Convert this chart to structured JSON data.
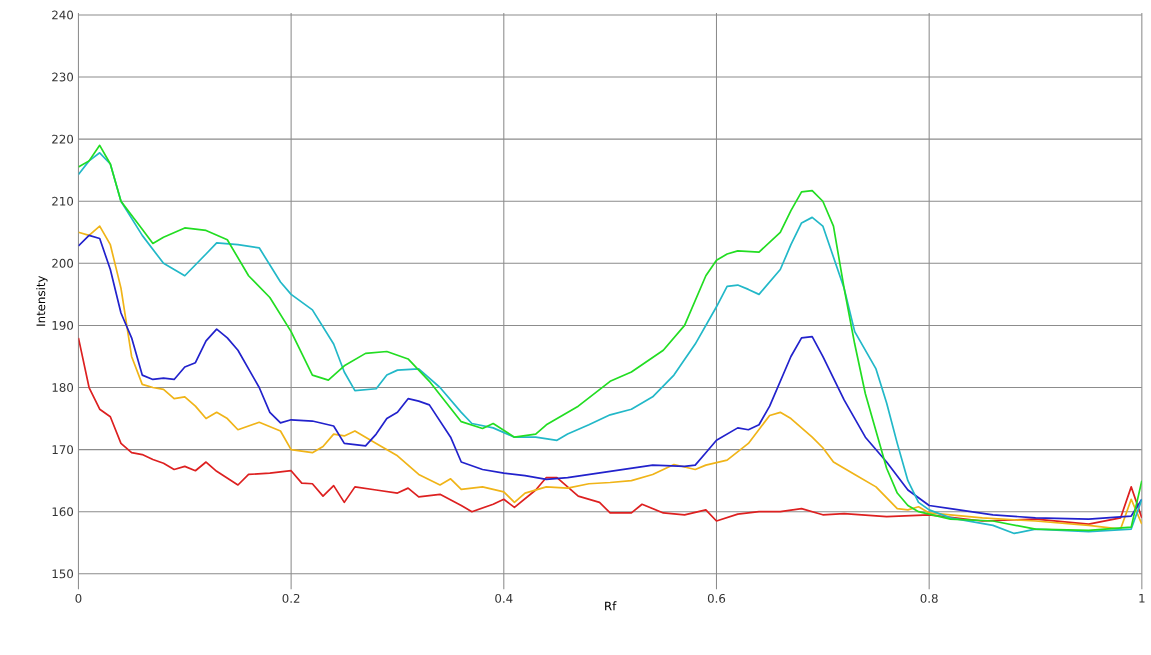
{
  "chart_data": {
    "type": "line",
    "xlabel": "Rf",
    "ylabel": "Intensity",
    "xlim": [
      0,
      1
    ],
    "ylim": [
      147.5,
      240.3
    ],
    "xticks": [
      0,
      0.2,
      0.4,
      0.6,
      0.8,
      1
    ],
    "yticks": [
      150,
      160,
      170,
      180,
      190,
      200,
      210,
      220,
      230,
      240
    ],
    "grid": true,
    "marker": "none",
    "line_style": "solid",
    "series": [
      {
        "color": "#dd2020",
        "x": [
          0,
          0.01,
          0.02,
          0.03,
          0.04,
          0.05,
          0.06,
          0.07,
          0.08,
          0.09,
          0.1,
          0.11,
          0.12,
          0.13,
          0.15,
          0.16,
          0.18,
          0.2,
          0.21,
          0.22,
          0.23,
          0.24,
          0.25,
          0.26,
          0.28,
          0.3,
          0.31,
          0.32,
          0.34,
          0.36,
          0.37,
          0.39,
          0.4,
          0.41,
          0.43,
          0.44,
          0.45,
          0.47,
          0.49,
          0.5,
          0.52,
          0.53,
          0.55,
          0.57,
          0.59,
          0.6,
          0.62,
          0.64,
          0.66,
          0.68,
          0.7,
          0.72,
          0.76,
          0.8,
          0.85,
          0.9,
          0.95,
          0.98,
          0.99,
          1.0
        ],
        "values": [
          188,
          180,
          176.5,
          175.3,
          171,
          169.5,
          169.2,
          168.4,
          167.8,
          166.8,
          167.3,
          166.6,
          168,
          166.5,
          164.3,
          166,
          166.2,
          166.6,
          164.6,
          164.5,
          162.5,
          164.2,
          161.5,
          164,
          163.5,
          163,
          163.8,
          162.4,
          162.8,
          161,
          160,
          161.2,
          162,
          160.7,
          163.5,
          165.5,
          165.5,
          162.5,
          161.5,
          159.8,
          159.8,
          161.2,
          159.8,
          159.5,
          160.3,
          158.5,
          159.6,
          160,
          160,
          160.5,
          159.5,
          159.7,
          159.2,
          159.5,
          158.5,
          158.8,
          158,
          159,
          164,
          159
        ]
      },
      {
        "color": "#f0b418",
        "x": [
          0,
          0.01,
          0.02,
          0.03,
          0.04,
          0.05,
          0.06,
          0.07,
          0.08,
          0.09,
          0.1,
          0.11,
          0.12,
          0.13,
          0.14,
          0.15,
          0.17,
          0.19,
          0.2,
          0.22,
          0.23,
          0.24,
          0.25,
          0.26,
          0.28,
          0.3,
          0.32,
          0.34,
          0.35,
          0.36,
          0.38,
          0.4,
          0.41,
          0.42,
          0.44,
          0.46,
          0.48,
          0.5,
          0.52,
          0.54,
          0.56,
          0.58,
          0.59,
          0.61,
          0.63,
          0.65,
          0.66,
          0.67,
          0.69,
          0.7,
          0.71,
          0.73,
          0.75,
          0.77,
          0.78,
          0.79,
          0.8,
          0.85,
          0.9,
          0.95,
          0.98,
          0.99,
          1.0
        ],
        "values": [
          205,
          204.5,
          206,
          203,
          196,
          185,
          180.5,
          180,
          179.7,
          178.2,
          178.5,
          177,
          175,
          176,
          175,
          173.2,
          174.4,
          173,
          170,
          169.5,
          170.5,
          172.5,
          172.2,
          173,
          171,
          169,
          166,
          164.3,
          165.3,
          163.6,
          164,
          163.2,
          161.5,
          163,
          164,
          163.8,
          164.5,
          164.7,
          165,
          166,
          167.6,
          166.8,
          167.5,
          168.3,
          171,
          175.5,
          176,
          175,
          172,
          170.3,
          168,
          166,
          164,
          160.5,
          160.3,
          160.8,
          159.8,
          159,
          158.5,
          157.8,
          157.2,
          162,
          158
        ]
      },
      {
        "color": "#2222cc",
        "x": [
          0,
          0.01,
          0.02,
          0.03,
          0.04,
          0.05,
          0.06,
          0.07,
          0.08,
          0.09,
          0.1,
          0.11,
          0.12,
          0.13,
          0.14,
          0.15,
          0.17,
          0.18,
          0.19,
          0.2,
          0.22,
          0.24,
          0.25,
          0.26,
          0.27,
          0.28,
          0.29,
          0.3,
          0.31,
          0.32,
          0.33,
          0.35,
          0.36,
          0.38,
          0.4,
          0.42,
          0.44,
          0.46,
          0.5,
          0.54,
          0.57,
          0.58,
          0.59,
          0.6,
          0.62,
          0.63,
          0.64,
          0.65,
          0.66,
          0.67,
          0.68,
          0.69,
          0.7,
          0.72,
          0.74,
          0.76,
          0.78,
          0.8,
          0.82,
          0.86,
          0.9,
          0.95,
          0.99,
          1.0
        ],
        "values": [
          202.8,
          204.5,
          204,
          199,
          192,
          188,
          182,
          181.3,
          181.5,
          181.3,
          183.3,
          184,
          187.5,
          189.4,
          188,
          186,
          180,
          176,
          174.3,
          174.8,
          174.6,
          173.8,
          171,
          170.8,
          170.6,
          172.5,
          175,
          176,
          178.2,
          177.8,
          177.2,
          172,
          168,
          166.8,
          166.2,
          165.8,
          165.2,
          165.5,
          166.5,
          167.5,
          167.3,
          167.5,
          169.5,
          171.5,
          173.5,
          173.2,
          174,
          177,
          181,
          185,
          188,
          188.2,
          185,
          178,
          172,
          168,
          163.5,
          161,
          160.5,
          159.5,
          159,
          158.8,
          159.3,
          162
        ]
      },
      {
        "color": "#22b8c8",
        "x": [
          0,
          0.01,
          0.02,
          0.03,
          0.04,
          0.06,
          0.08,
          0.1,
          0.12,
          0.13,
          0.15,
          0.17,
          0.19,
          0.2,
          0.22,
          0.24,
          0.25,
          0.26,
          0.28,
          0.29,
          0.3,
          0.32,
          0.34,
          0.36,
          0.37,
          0.39,
          0.41,
          0.43,
          0.45,
          0.46,
          0.48,
          0.5,
          0.52,
          0.54,
          0.56,
          0.58,
          0.6,
          0.61,
          0.62,
          0.63,
          0.64,
          0.66,
          0.67,
          0.68,
          0.69,
          0.7,
          0.72,
          0.73,
          0.74,
          0.75,
          0.76,
          0.77,
          0.78,
          0.79,
          0.8,
          0.82,
          0.86,
          0.88,
          0.9,
          0.95,
          0.99,
          1.0
        ],
        "values": [
          214.3,
          216.5,
          217.8,
          216,
          210,
          204.5,
          200,
          198,
          201.5,
          203.3,
          203,
          202.5,
          197,
          195,
          192.5,
          187,
          182.5,
          179.5,
          179.8,
          182,
          182.8,
          183,
          180,
          176,
          174.2,
          173.5,
          172,
          172,
          171.5,
          172.5,
          174,
          175.6,
          176.5,
          178.5,
          182,
          187,
          193,
          196.3,
          196.5,
          195.8,
          195,
          199,
          203,
          206.5,
          207.4,
          206,
          196,
          189,
          186,
          183,
          177.5,
          171,
          165,
          161.5,
          160.3,
          159,
          157.8,
          156.5,
          157.2,
          156.8,
          157.2,
          162
        ]
      },
      {
        "color": "#22dd22",
        "x": [
          0,
          0.01,
          0.02,
          0.03,
          0.04,
          0.06,
          0.07,
          0.08,
          0.1,
          0.12,
          0.14,
          0.16,
          0.18,
          0.2,
          0.22,
          0.235,
          0.25,
          0.27,
          0.29,
          0.31,
          0.33,
          0.36,
          0.38,
          0.39,
          0.41,
          0.43,
          0.44,
          0.47,
          0.5,
          0.52,
          0.55,
          0.57,
          0.59,
          0.6,
          0.61,
          0.62,
          0.64,
          0.66,
          0.67,
          0.68,
          0.69,
          0.7,
          0.71,
          0.72,
          0.73,
          0.74,
          0.75,
          0.76,
          0.77,
          0.78,
          0.79,
          0.82,
          0.86,
          0.9,
          0.95,
          0.99,
          1.0
        ],
        "values": [
          215.5,
          216.5,
          219,
          216,
          210,
          205.5,
          203.2,
          204.2,
          205.7,
          205.3,
          203.8,
          198,
          194.5,
          189,
          182,
          181.2,
          183.5,
          185.5,
          185.8,
          184.6,
          181,
          174.5,
          173.4,
          174.2,
          172,
          172.5,
          174,
          177,
          181,
          182.5,
          186,
          190,
          198,
          200.5,
          201.5,
          202,
          201.8,
          205,
          208.5,
          211.5,
          211.7,
          210,
          206,
          196,
          187,
          179,
          173,
          167,
          163,
          161,
          160,
          158.8,
          158.5,
          157.2,
          157,
          157.5,
          165
        ]
      }
    ]
  }
}
